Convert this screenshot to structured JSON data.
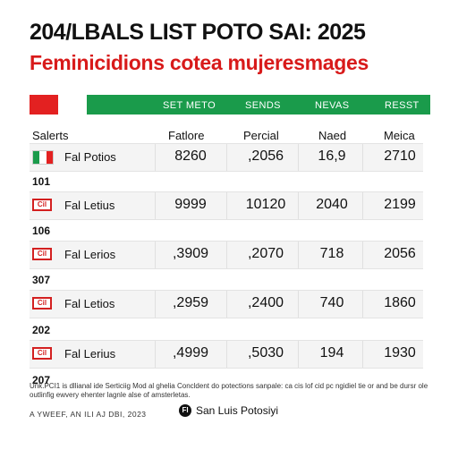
{
  "title": "204/LBALS LIST POTO SAI: 2025",
  "subtitle": "Feminicidions cotea mujeresmages",
  "header_bar": [
    "SET METO",
    "SENDS",
    "NEVAS",
    "RESST"
  ],
  "columns": [
    "Salerts",
    "Fatlore",
    "Percial",
    "Naed",
    "Meica"
  ],
  "rows": [
    {
      "flag": "mexico-flag-icon",
      "name": "Fal Potios",
      "values": [
        "8260",
        ",2056",
        "16,9",
        "2710"
      ],
      "code": "101"
    },
    {
      "flag": "red-badge-icon",
      "flag_text": "Cil",
      "name": "Fal Letius",
      "values": [
        "9999",
        "10120",
        "2040",
        "2199"
      ],
      "code": "106"
    },
    {
      "flag": "red-badge-icon",
      "flag_text": "Cil",
      "name": "Fal Lerios",
      "values": [
        ",3909",
        ",2070",
        "718",
        "2056"
      ],
      "code": "307"
    },
    {
      "flag": "red-badge-icon",
      "flag_text": "Cil",
      "name": "Fal Letios",
      "values": [
        ",2959",
        ",2400",
        "740",
        "1860"
      ],
      "code": "202"
    },
    {
      "flag": "red-badge-icon",
      "flag_text": "Cil",
      "name": "Fal Lerius",
      "values": [
        ",4999",
        ",5030",
        "194",
        "1930"
      ],
      "code": "207"
    }
  ],
  "footer": {
    "note": "Unk.PCI1 is dllianal ide Serticiig Mod al ghelia Concldent do potections sanpale: ca cis lof cid pc ngidiel tie or and be dursr ole outlinfig ewvery ehenter lagnle alse of amsterletas.",
    "date": "A YWEEF, AN ILI AJ DBI, 2023",
    "brand_logo": "Fl",
    "brand": "San Luis Potosiyi"
  },
  "colors": {
    "red": "#e32121",
    "green": "#1a9b4b",
    "subtitle": "#d81a1a"
  }
}
